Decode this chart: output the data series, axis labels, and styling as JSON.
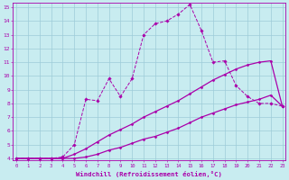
{
  "xlabel": "Windchill (Refroidissement éolien,°C)",
  "bg_color": "#c8ecf0",
  "line_color": "#aa00aa",
  "grid_color": "#9dccd8",
  "xmin": 0,
  "xmax": 23,
  "ymin": 4,
  "ymax": 15,
  "x_vals": [
    0,
    1,
    2,
    3,
    4,
    5,
    6,
    7,
    8,
    9,
    10,
    11,
    12,
    13,
    14,
    15,
    16,
    17,
    18,
    19,
    20,
    21,
    22,
    23
  ],
  "line1": [
    4.0,
    4.0,
    4.0,
    4.0,
    4.1,
    5.0,
    8.3,
    8.2,
    9.8,
    8.5,
    9.8,
    13.0,
    13.8,
    14.0,
    14.5,
    15.2,
    13.3,
    11.0,
    11.1,
    9.3,
    8.5,
    8.0,
    8.0,
    7.8
  ],
  "line2": [
    4.0,
    4.0,
    4.0,
    4.0,
    4.0,
    4.3,
    4.7,
    5.2,
    5.7,
    6.1,
    6.5,
    7.0,
    7.4,
    7.8,
    8.2,
    8.7,
    9.2,
    9.7,
    10.1,
    10.5,
    10.8,
    11.0,
    11.1,
    7.8
  ],
  "line3": [
    4.0,
    4.0,
    4.0,
    4.0,
    4.0,
    4.0,
    4.1,
    4.3,
    4.6,
    4.8,
    5.1,
    5.4,
    5.6,
    5.9,
    6.2,
    6.6,
    7.0,
    7.3,
    7.6,
    7.9,
    8.1,
    8.3,
    8.6,
    7.8
  ]
}
